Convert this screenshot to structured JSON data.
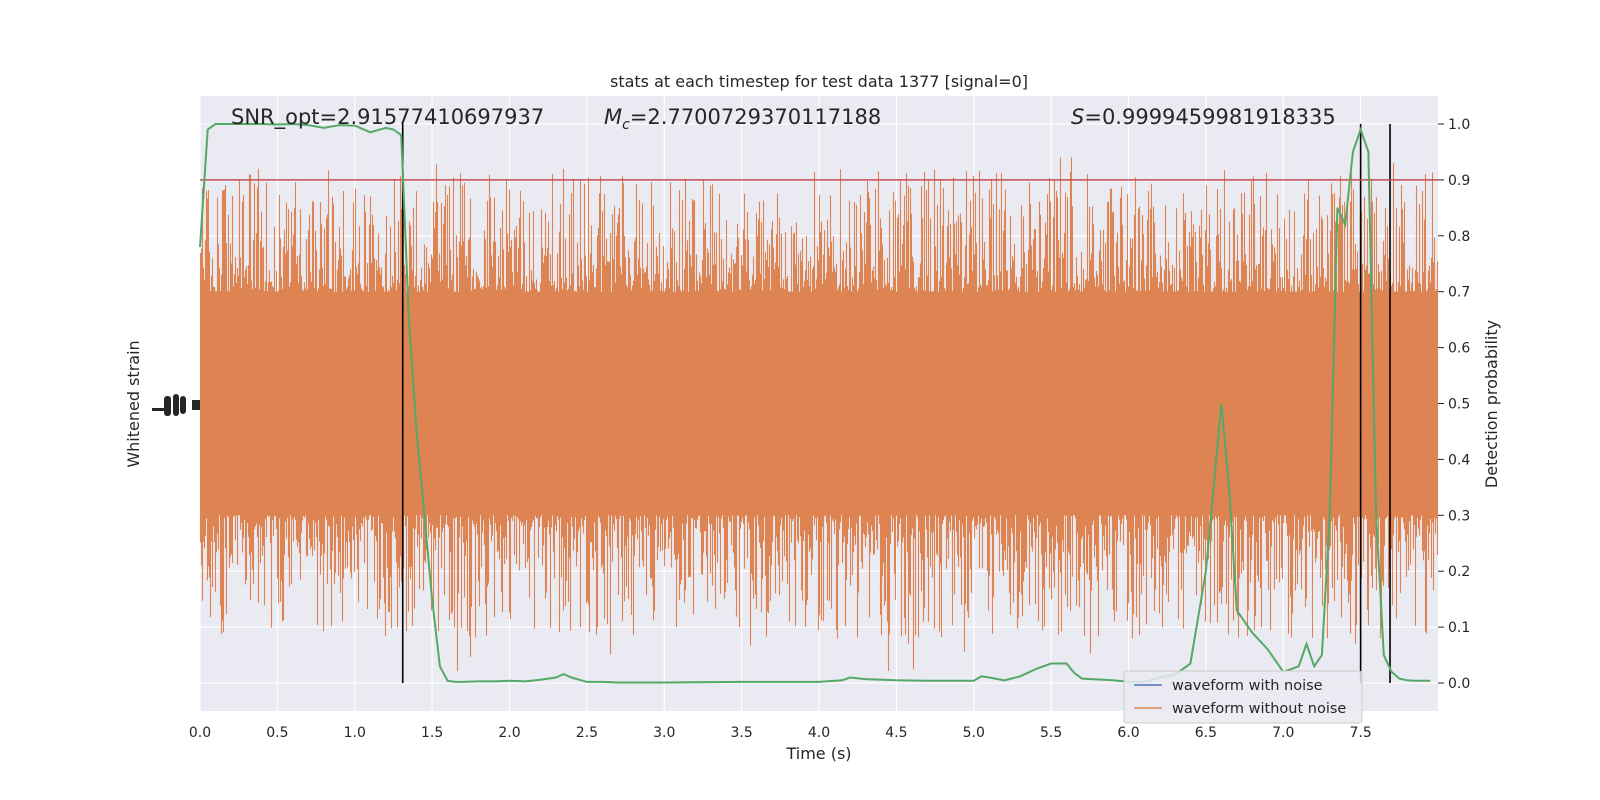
{
  "chart_data": {
    "type": "line",
    "title": "stats at each timestep for test data 1377 [signal=0]",
    "xlabel": "Time (s)",
    "ylabel_left": "Whitened strain",
    "ylabel_right": "Detection probability",
    "xlim": [
      0,
      8
    ],
    "ylim_right": [
      -0.05,
      1.05
    ],
    "x_ticks": [
      "0.0",
      "0.5",
      "1.0",
      "1.5",
      "2.0",
      "2.5",
      "3.0",
      "3.5",
      "4.0",
      "4.5",
      "5.0",
      "5.5",
      "6.0",
      "6.5",
      "7.0",
      "7.5"
    ],
    "x_tick_values": [
      0,
      0.5,
      1,
      1.5,
      2,
      2.5,
      3,
      3.5,
      4,
      4.5,
      5,
      5.5,
      6,
      6.5,
      7,
      7.5
    ],
    "y_right_ticks": [
      "0.0",
      "0.1",
      "0.2",
      "0.3",
      "0.4",
      "0.5",
      "0.6",
      "0.7",
      "0.8",
      "0.9",
      "1.0"
    ],
    "y_right_tick_values": [
      0,
      0.1,
      0.2,
      0.3,
      0.4,
      0.5,
      0.6,
      0.7,
      0.8,
      0.9,
      1.0
    ],
    "grid": true,
    "legend_position": "lower-right",
    "background": "#eaeaf2",
    "annotations": {
      "snr": "SNR_opt=2.91577410697937",
      "mc_symbol": "M",
      "mc_sub": "c",
      "mc_value": "=2.7700729370117188",
      "s_symbol": "S",
      "s_value": "=0.9999459981918335"
    },
    "threshold": {
      "value": 0.9,
      "color": "#c44e52"
    },
    "vertical_markers": [
      1.31,
      7.5,
      7.69
    ],
    "series": [
      {
        "name": "waveform with noise",
        "color": "#4c72b0",
        "kind": "noise",
        "values": []
      },
      {
        "name": "waveform without noise",
        "color": "#dd8452",
        "kind": "noise",
        "noise_center": 0.5,
        "noise_band": [
          0.3,
          0.7
        ],
        "spike_range": [
          0.02,
          1.0
        ]
      },
      {
        "kind": "probability",
        "color": "#55a868",
        "x": [
          0.0,
          0.05,
          0.1,
          0.2,
          0.3,
          0.4,
          0.5,
          0.6,
          0.7,
          0.8,
          0.9,
          1.0,
          1.1,
          1.2,
          1.25,
          1.3,
          1.35,
          1.4,
          1.45,
          1.5,
          1.55,
          1.6,
          1.65,
          1.7,
          1.8,
          1.9,
          2.0,
          2.1,
          2.2,
          2.3,
          2.35,
          2.4,
          2.5,
          2.6,
          2.7,
          2.8,
          3.0,
          3.5,
          4.0,
          4.15,
          4.2,
          4.3,
          4.5,
          4.7,
          5.0,
          5.05,
          5.1,
          5.2,
          5.3,
          5.4,
          5.5,
          5.6,
          5.65,
          5.7,
          5.9,
          6.0,
          6.1,
          6.2,
          6.3,
          6.4,
          6.5,
          6.6,
          6.65,
          6.7,
          6.8,
          6.9,
          7.0,
          7.1,
          7.15,
          7.2,
          7.25,
          7.3,
          7.35,
          7.4,
          7.45,
          7.5,
          7.55,
          7.6,
          7.65,
          7.7,
          7.75,
          7.8,
          7.85,
          7.9,
          7.95
        ],
        "y": [
          0.78,
          0.99,
          1.0,
          1.0,
          1.0,
          1.0,
          0.999,
          1.0,
          0.998,
          0.993,
          0.998,
          0.997,
          0.985,
          0.993,
          0.99,
          0.98,
          0.65,
          0.45,
          0.3,
          0.15,
          0.03,
          0.004,
          0.002,
          0.002,
          0.003,
          0.003,
          0.004,
          0.003,
          0.006,
          0.01,
          0.016,
          0.01,
          0.002,
          0.002,
          0.001,
          0.001,
          0.001,
          0.002,
          0.002,
          0.005,
          0.01,
          0.007,
          0.005,
          0.004,
          0.004,
          0.012,
          0.01,
          0.005,
          0.012,
          0.025,
          0.035,
          0.035,
          0.018,
          0.008,
          0.005,
          0.002,
          0.002,
          0.01,
          0.015,
          0.035,
          0.2,
          0.5,
          0.35,
          0.13,
          0.09,
          0.06,
          0.02,
          0.03,
          0.07,
          0.03,
          0.05,
          0.3,
          0.85,
          0.82,
          0.95,
          0.99,
          0.95,
          0.3,
          0.05,
          0.02,
          0.008,
          0.005,
          0.004,
          0.004,
          0.004
        ]
      }
    ]
  }
}
